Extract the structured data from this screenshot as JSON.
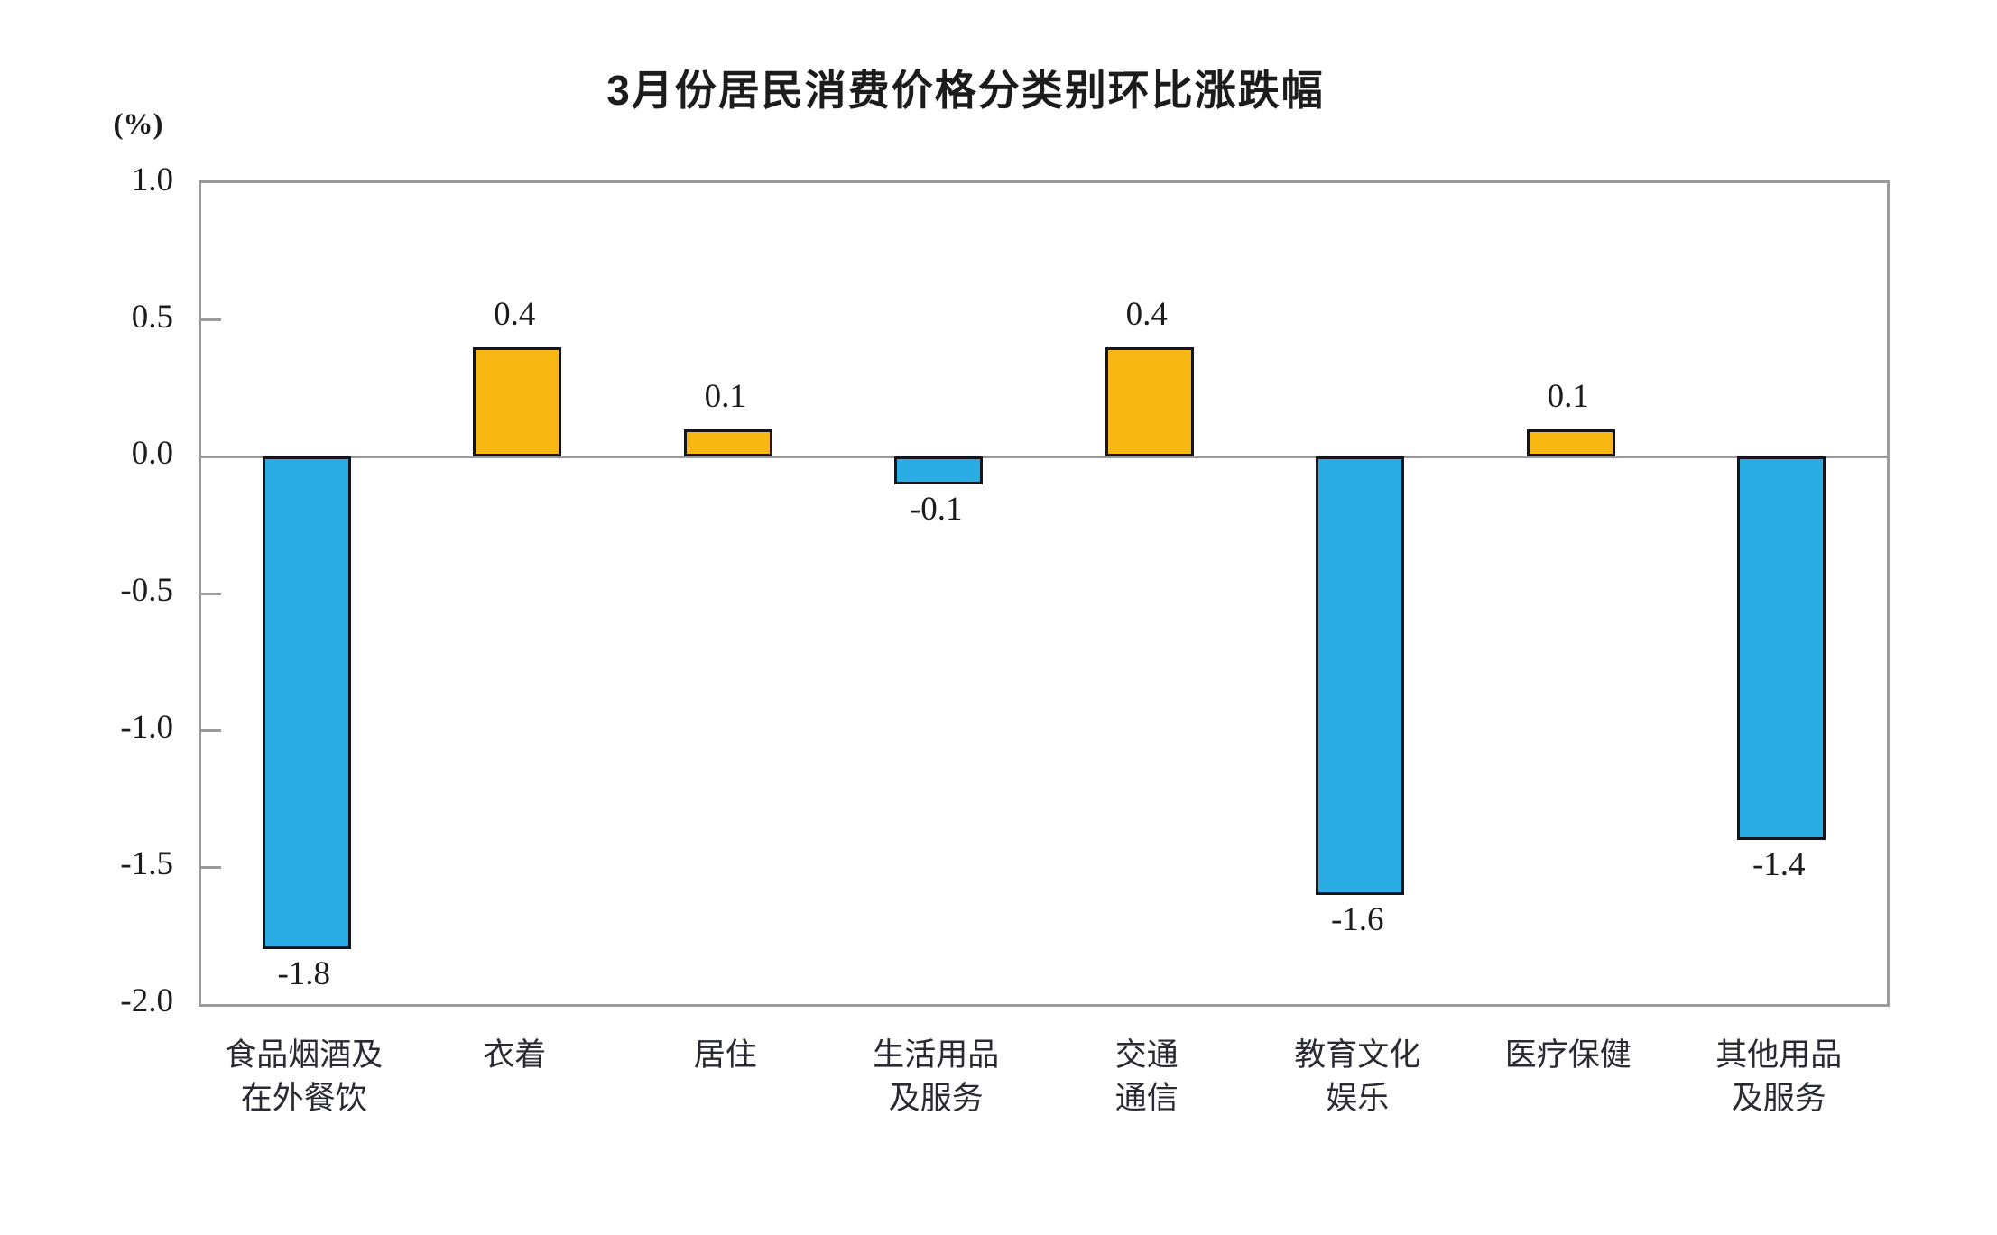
{
  "chart_data": {
    "type": "bar",
    "title": "3月份居民消费价格分类别环比涨跌幅",
    "unit_label": "(%)",
    "categories": [
      "食品烟酒及在外餐饮",
      "衣着",
      "居住",
      "生活用品及服务",
      "交通通信",
      "教育文化娱乐",
      "医疗保健",
      "其他用品及服务"
    ],
    "category_lines": [
      [
        "食品烟酒及",
        "在外餐饮"
      ],
      [
        "衣着"
      ],
      [
        "居住"
      ],
      [
        "生活用品",
        "及服务"
      ],
      [
        "交通",
        "通信"
      ],
      [
        "教育文化",
        "娱乐"
      ],
      [
        "医疗保健"
      ],
      [
        "其他用品",
        "及服务"
      ]
    ],
    "values": [
      -1.8,
      0.4,
      0.1,
      -0.1,
      0.4,
      -1.6,
      0.1,
      -1.4
    ],
    "value_labels": [
      "-1.8",
      "0.4",
      "0.1",
      "-0.1",
      "0.4",
      "-1.6",
      "0.1",
      "-1.4"
    ],
    "y_ticks": [
      1.0,
      0.5,
      0.0,
      -0.5,
      -1.0,
      -1.5,
      -2.0
    ],
    "y_tick_labels": [
      "1.0",
      "0.5",
      "0.0",
      "-0.5",
      "-1.0",
      "-1.5",
      "-2.0"
    ],
    "ylim": [
      -2.0,
      1.0
    ],
    "xlabel": "",
    "ylabel": "(%)",
    "grid": false,
    "legend_position": "none",
    "colors": {
      "positive_bar": "#f8b713",
      "negative_bar": "#29ade4",
      "bar_border": "#14151c",
      "axis": "#9a9a9a",
      "text": "#1c1c1c"
    }
  }
}
